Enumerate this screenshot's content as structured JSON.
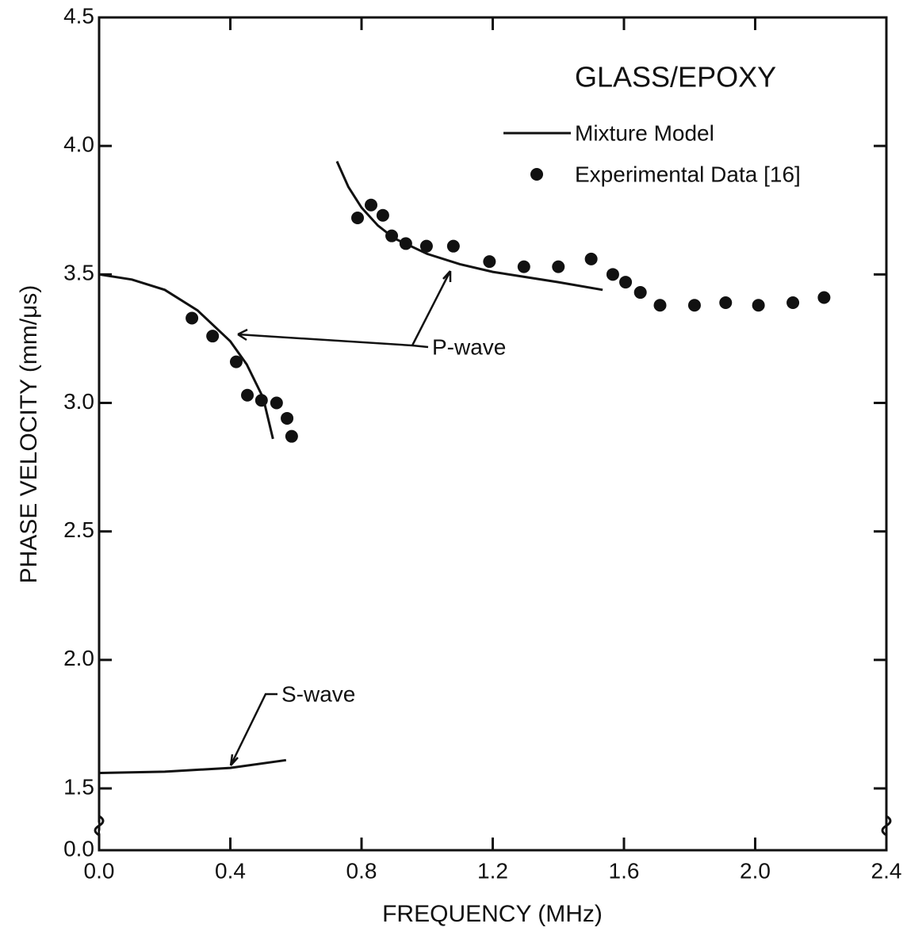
{
  "chart_data": {
    "type": "scatter",
    "title": "GLASS/EPOXY",
    "xlabel": "FREQUENCY (MHz)",
    "ylabel": "PHASE VELOCITY (mm/μs)",
    "xlim": [
      0,
      2.4
    ],
    "ylim": [
      0,
      4.5
    ],
    "axis_break": [
      0,
      1.5
    ],
    "xticks": [
      {
        "value": 0,
        "label": "0.0"
      },
      0.4,
      0.8,
      1.2,
      1.6,
      {
        "value": 2,
        "label": "2.0"
      },
      2.4
    ],
    "yticks": [
      {
        "value": 0,
        "label": "0.0"
      },
      1.5,
      {
        "value": 2,
        "label": "2.0"
      },
      2.5,
      {
        "value": 3,
        "label": "3.0"
      },
      3.5,
      {
        "value": 4,
        "label": "4.0"
      },
      4.5
    ],
    "legend": "upper right",
    "annotations": [
      "P-wave",
      "S-wave"
    ],
    "series": [
      {
        "name": "Mixture Model",
        "type": "line",
        "color": "#111111",
        "x": [
          0,
          0.1,
          0.2,
          0.3,
          0.4,
          0.45,
          0.5,
          0.53,
          null,
          0.725,
          0.76,
          0.8,
          0.85,
          0.9,
          1.0,
          1.1,
          1.2,
          1.3,
          1.4,
          1.535,
          null,
          0,
          0.2,
          0.4,
          0.57
        ],
        "values": [
          3.5,
          3.48,
          3.44,
          3.36,
          3.24,
          3.15,
          3.02,
          2.86,
          null,
          3.94,
          3.84,
          3.76,
          3.69,
          3.64,
          3.58,
          3.54,
          3.51,
          3.49,
          3.47,
          3.44,
          null,
          1.56,
          1.565,
          1.58,
          1.61
        ]
      },
      {
        "name": "Experimental Data [16]",
        "type": "scatter",
        "color": "#111111",
        "x": [
          0.283,
          0.346,
          0.418,
          0.452,
          0.495,
          0.541,
          0.573,
          0.587,
          0.788,
          0.829,
          0.865,
          0.892,
          0.935,
          0.998,
          1.08,
          1.19,
          1.295,
          1.4,
          1.5,
          1.566,
          1.605,
          1.65,
          1.71,
          1.815,
          1.91,
          2.01,
          2.115,
          2.21
        ],
        "values": [
          3.33,
          3.26,
          3.16,
          3.03,
          3.01,
          3.0,
          2.94,
          2.87,
          3.72,
          3.77,
          3.73,
          3.65,
          3.62,
          3.61,
          3.61,
          3.55,
          3.53,
          3.53,
          3.56,
          3.5,
          3.47,
          3.43,
          3.38,
          3.38,
          3.39,
          3.38,
          3.39,
          3.41
        ]
      }
    ]
  }
}
